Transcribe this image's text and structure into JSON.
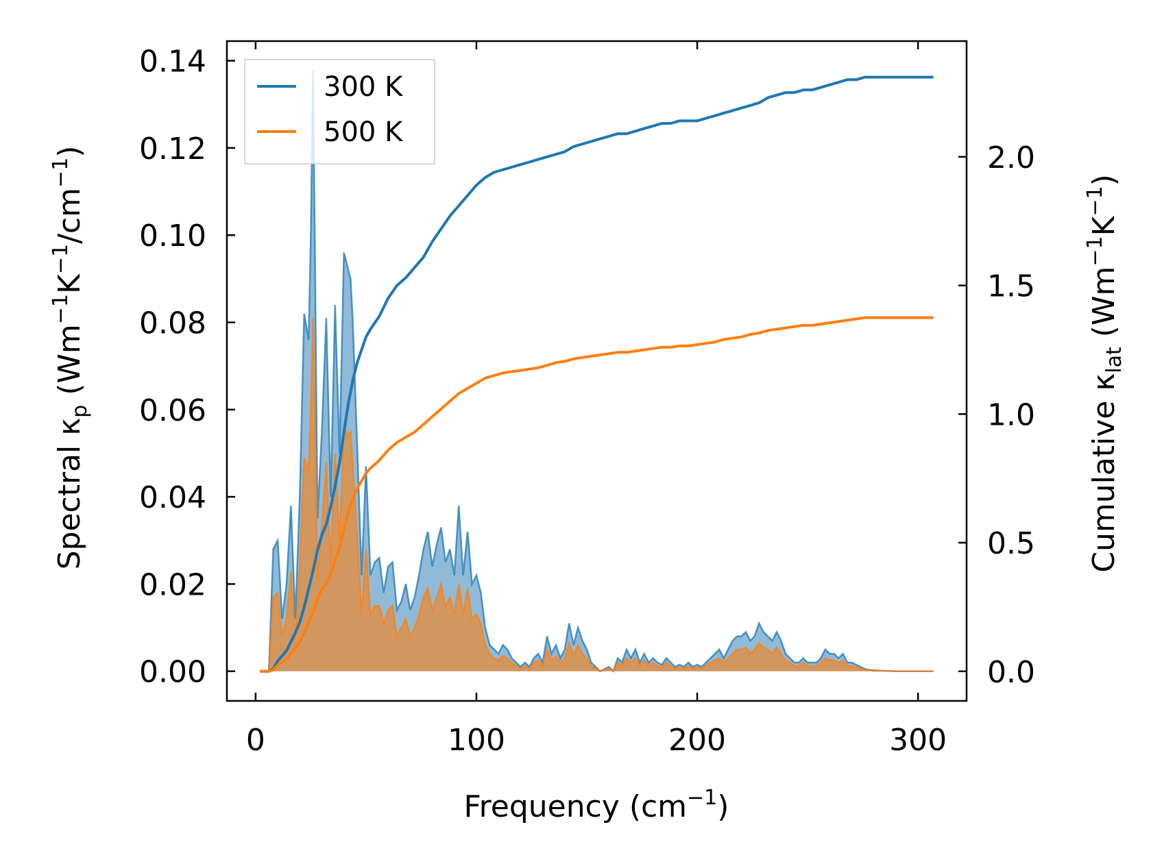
{
  "chart_data": {
    "type": "area",
    "x_axis": {
      "label": "Frequency (cm",
      "label_sup": "−1",
      "label_end": ")",
      "lim": [
        -13,
        322
      ],
      "ticks": [
        0,
        100,
        200,
        300
      ],
      "tick_labels": [
        "0",
        "100",
        "200",
        "300"
      ]
    },
    "y_left": {
      "label_pre": "Spectral κ",
      "label_sub": "p",
      "label_mid1": " (Wm",
      "label_sup1": "−1",
      "label_mid2": "K",
      "label_sup2": "−1",
      "label_mid3": "/cm",
      "label_sup3": "−1",
      "label_end": ")",
      "lim": [
        -0.0068,
        0.1445
      ],
      "ticks": [
        0.0,
        0.02,
        0.04,
        0.06,
        0.08,
        0.1,
        0.12,
        0.14
      ],
      "tick_labels": [
        "0.00",
        "0.02",
        "0.04",
        "0.06",
        "0.08",
        "0.10",
        "0.12",
        "0.14"
      ]
    },
    "y_right": {
      "label_pre": "Cumulative κ",
      "label_sub": "lat",
      "label_mid": " (Wm",
      "label_sup1": "−1",
      "label_mid2": "K",
      "label_sup2": "−1",
      "label_end": ")",
      "lim": [
        -0.115,
        2.45
      ],
      "ticks": [
        0.0,
        0.5,
        1.0,
        1.5,
        2.0
      ],
      "tick_labels": [
        "0.0",
        "0.5",
        "1.0",
        "1.5",
        "2.0"
      ]
    },
    "legend": {
      "placement": "top-left",
      "entries": [
        "300 K",
        "500 K"
      ]
    },
    "grid": false,
    "series": [
      {
        "name": "300 K",
        "color": "#1f77b4",
        "spectral": {
          "x": [
            2,
            6,
            8,
            10,
            12,
            14,
            16,
            18,
            20,
            22,
            24,
            25,
            26,
            27,
            28,
            30,
            32,
            34,
            36,
            38,
            40,
            42,
            43,
            44,
            46,
            48,
            50,
            52,
            54,
            56,
            58,
            60,
            62,
            64,
            66,
            68,
            70,
            72,
            74,
            76,
            78,
            80,
            82,
            84,
            86,
            88,
            90,
            92,
            94,
            96,
            98,
            100,
            102,
            104,
            106,
            108,
            110,
            112,
            114,
            116,
            118,
            120,
            122,
            124,
            126,
            128,
            130,
            132,
            134,
            136,
            138,
            140,
            142,
            144,
            146,
            148,
            150,
            152,
            154,
            156,
            158,
            160,
            162,
            164,
            166,
            168,
            170,
            172,
            174,
            176,
            178,
            180,
            182,
            184,
            186,
            188,
            190,
            192,
            194,
            196,
            198,
            200,
            202,
            204,
            206,
            208,
            210,
            212,
            214,
            216,
            218,
            220,
            222,
            224,
            226,
            228,
            230,
            232,
            234,
            236,
            238,
            240,
            242,
            244,
            246,
            248,
            250,
            252,
            254,
            256,
            258,
            260,
            262,
            264,
            266,
            268,
            270,
            272,
            274,
            276,
            278,
            280,
            285,
            290,
            295,
            300,
            307
          ],
          "y": [
            0,
            0,
            0.028,
            0.03,
            0.012,
            0.02,
            0.038,
            0.012,
            0.04,
            0.082,
            0.076,
            0.1,
            0.138,
            0.09,
            0.035,
            0.055,
            0.081,
            0.04,
            0.084,
            0.05,
            0.096,
            0.092,
            0.09,
            0.08,
            0.052,
            0.022,
            0.047,
            0.022,
            0.025,
            0.026,
            0.018,
            0.024,
            0.025,
            0.014,
            0.016,
            0.02,
            0.014,
            0.017,
            0.022,
            0.028,
            0.032,
            0.024,
            0.029,
            0.033,
            0.025,
            0.028,
            0.022,
            0.038,
            0.022,
            0.032,
            0.02,
            0.022,
            0.018,
            0.01,
            0.006,
            0.005,
            0.004,
            0.006,
            0.005,
            0.003,
            0.002,
            0.001,
            0.002,
            0.001,
            0.003,
            0.004,
            0.002,
            0.008,
            0.004,
            0.006,
            0.003,
            0.005,
            0.011,
            0.006,
            0.01,
            0.007,
            0.005,
            0.002,
            0.001,
            0.0,
            0.0005,
            0.001,
            0.0,
            0.003,
            0.002,
            0.005,
            0.003,
            0.005,
            0.002,
            0.004,
            0.002,
            0.003,
            0.002,
            0.0015,
            0.003,
            0.002,
            0.001,
            0.0015,
            0.001,
            0.002,
            0.001,
            0.0015,
            0.001,
            0.002,
            0.003,
            0.004,
            0.005,
            0.003,
            0.005,
            0.007,
            0.008,
            0.008,
            0.009,
            0.007,
            0.008,
            0.011,
            0.009,
            0.008,
            0.007,
            0.009,
            0.007,
            0.004,
            0.003,
            0.002,
            0.002,
            0.003,
            0.002,
            0.002,
            0.002,
            0.003,
            0.005,
            0.004,
            0.004,
            0.003,
            0.004,
            0.002,
            0.002,
            0.0015,
            0.001,
            0.0005,
            0.0003,
            0.0002,
            0.0001,
            0,
            0,
            0,
            0
          ]
        },
        "cumulative": {
          "x": [
            2,
            6,
            8,
            10,
            14,
            18,
            20,
            22,
            24,
            26,
            28,
            30,
            32,
            34,
            36,
            38,
            40,
            42,
            44,
            46,
            48,
            50,
            52,
            56,
            60,
            64,
            68,
            72,
            76,
            80,
            84,
            88,
            92,
            96,
            100,
            104,
            108,
            112,
            116,
            120,
            124,
            128,
            132,
            136,
            140,
            144,
            148,
            152,
            156,
            160,
            164,
            168,
            172,
            176,
            180,
            184,
            188,
            192,
            196,
            200,
            204,
            208,
            212,
            216,
            220,
            224,
            228,
            232,
            236,
            240,
            244,
            248,
            252,
            256,
            260,
            264,
            268,
            272,
            276,
            280,
            284,
            290,
            300,
            307
          ],
          "y": [
            0,
            0,
            0.01,
            0.04,
            0.08,
            0.15,
            0.19,
            0.25,
            0.32,
            0.39,
            0.47,
            0.53,
            0.57,
            0.64,
            0.72,
            0.81,
            0.93,
            1.04,
            1.13,
            1.2,
            1.25,
            1.3,
            1.33,
            1.38,
            1.45,
            1.5,
            1.53,
            1.57,
            1.61,
            1.67,
            1.72,
            1.77,
            1.81,
            1.85,
            1.89,
            1.92,
            1.94,
            1.95,
            1.96,
            1.97,
            1.98,
            1.99,
            2.0,
            2.01,
            2.02,
            2.04,
            2.05,
            2.06,
            2.07,
            2.08,
            2.09,
            2.09,
            2.1,
            2.11,
            2.12,
            2.13,
            2.13,
            2.14,
            2.14,
            2.14,
            2.15,
            2.16,
            2.17,
            2.18,
            2.19,
            2.2,
            2.21,
            2.23,
            2.24,
            2.25,
            2.25,
            2.26,
            2.26,
            2.27,
            2.28,
            2.29,
            2.3,
            2.3,
            2.31,
            2.31,
            2.31,
            2.31,
            2.31,
            2.31
          ]
        }
      },
      {
        "name": "500 K",
        "color": "#ff7f0e",
        "spectral": {
          "x": [
            2,
            6,
            8,
            10,
            12,
            14,
            16,
            18,
            20,
            22,
            24,
            25,
            26,
            27,
            28,
            30,
            32,
            34,
            36,
            38,
            40,
            42,
            43,
            44,
            46,
            48,
            50,
            52,
            54,
            56,
            58,
            60,
            62,
            64,
            66,
            68,
            70,
            72,
            74,
            76,
            78,
            80,
            82,
            84,
            86,
            88,
            90,
            92,
            94,
            96,
            98,
            100,
            102,
            104,
            106,
            108,
            110,
            112,
            114,
            116,
            118,
            120,
            122,
            124,
            126,
            128,
            130,
            132,
            134,
            136,
            138,
            140,
            142,
            144,
            146,
            148,
            150,
            152,
            154,
            156,
            158,
            160,
            162,
            164,
            166,
            168,
            170,
            172,
            174,
            176,
            178,
            180,
            182,
            184,
            186,
            188,
            190,
            192,
            194,
            196,
            198,
            200,
            202,
            204,
            206,
            208,
            210,
            212,
            214,
            216,
            218,
            220,
            222,
            224,
            226,
            228,
            230,
            232,
            234,
            236,
            238,
            240,
            242,
            244,
            246,
            248,
            250,
            252,
            254,
            256,
            258,
            260,
            262,
            264,
            266,
            268,
            270,
            272,
            274,
            276,
            278,
            280,
            285,
            290,
            295,
            300,
            307
          ],
          "y": [
            0,
            0,
            0.017,
            0.018,
            0.008,
            0.012,
            0.023,
            0.007,
            0.024,
            0.049,
            0.046,
            0.06,
            0.081,
            0.053,
            0.021,
            0.033,
            0.048,
            0.024,
            0.05,
            0.03,
            0.056,
            0.054,
            0.055,
            0.047,
            0.031,
            0.013,
            0.028,
            0.013,
            0.015,
            0.015,
            0.011,
            0.014,
            0.015,
            0.008,
            0.01,
            0.012,
            0.008,
            0.01,
            0.013,
            0.017,
            0.019,
            0.014,
            0.017,
            0.02,
            0.015,
            0.017,
            0.013,
            0.02,
            0.013,
            0.019,
            0.012,
            0.013,
            0.011,
            0.006,
            0.004,
            0.003,
            0.0025,
            0.0035,
            0.003,
            0.002,
            0.0012,
            0.0006,
            0.0012,
            0.0006,
            0.002,
            0.0025,
            0.0012,
            0.005,
            0.0025,
            0.0035,
            0.002,
            0.003,
            0.0065,
            0.0035,
            0.006,
            0.004,
            0.003,
            0.0012,
            0.0006,
            0.0,
            0.0003,
            0.0006,
            0.0,
            0.002,
            0.0012,
            0.003,
            0.002,
            0.003,
            0.0012,
            0.0025,
            0.0012,
            0.002,
            0.0012,
            0.0009,
            0.002,
            0.0012,
            0.0006,
            0.0009,
            0.0006,
            0.0012,
            0.0006,
            0.0009,
            0.0006,
            0.0012,
            0.002,
            0.0025,
            0.003,
            0.002,
            0.003,
            0.004,
            0.005,
            0.005,
            0.0055,
            0.004,
            0.005,
            0.0065,
            0.0055,
            0.005,
            0.004,
            0.0055,
            0.004,
            0.0025,
            0.002,
            0.0012,
            0.0012,
            0.002,
            0.0012,
            0.0012,
            0.0012,
            0.002,
            0.003,
            0.0025,
            0.0025,
            0.002,
            0.0025,
            0.0012,
            0.0012,
            0.0009,
            0.0006,
            0.0003,
            0.0002,
            0.0001,
            0.0001,
            0,
            0,
            0,
            0
          ]
        },
        "cumulative": {
          "x": [
            2,
            6,
            8,
            10,
            14,
            18,
            20,
            22,
            24,
            26,
            28,
            30,
            32,
            34,
            36,
            38,
            40,
            42,
            44,
            46,
            48,
            50,
            52,
            56,
            60,
            64,
            68,
            72,
            76,
            80,
            84,
            88,
            92,
            96,
            100,
            104,
            108,
            112,
            116,
            120,
            124,
            128,
            132,
            136,
            140,
            144,
            148,
            152,
            156,
            160,
            164,
            168,
            172,
            176,
            180,
            184,
            188,
            192,
            196,
            200,
            204,
            208,
            212,
            216,
            220,
            224,
            228,
            232,
            236,
            240,
            244,
            248,
            252,
            256,
            260,
            264,
            268,
            272,
            276,
            280,
            284,
            290,
            300,
            307
          ],
          "y": [
            0,
            0,
            0.006,
            0.024,
            0.048,
            0.09,
            0.114,
            0.15,
            0.19,
            0.23,
            0.28,
            0.32,
            0.34,
            0.38,
            0.43,
            0.48,
            0.55,
            0.62,
            0.67,
            0.71,
            0.74,
            0.77,
            0.79,
            0.82,
            0.86,
            0.89,
            0.91,
            0.93,
            0.96,
            0.99,
            1.02,
            1.05,
            1.08,
            1.1,
            1.12,
            1.14,
            1.15,
            1.16,
            1.165,
            1.17,
            1.175,
            1.18,
            1.19,
            1.2,
            1.205,
            1.215,
            1.22,
            1.225,
            1.23,
            1.235,
            1.24,
            1.24,
            1.245,
            1.25,
            1.255,
            1.26,
            1.26,
            1.265,
            1.265,
            1.27,
            1.275,
            1.28,
            1.29,
            1.295,
            1.3,
            1.31,
            1.315,
            1.325,
            1.33,
            1.335,
            1.34,
            1.345,
            1.345,
            1.35,
            1.355,
            1.36,
            1.365,
            1.37,
            1.375,
            1.375,
            1.375,
            1.375,
            1.375,
            1.375
          ]
        }
      }
    ]
  }
}
